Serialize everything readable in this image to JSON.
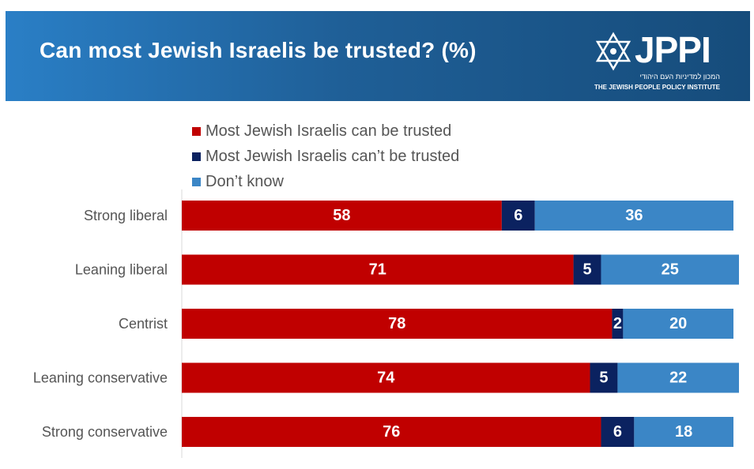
{
  "header": {
    "title": "Can most Jewish Israelis be trusted? (%)",
    "logo_text": "JPPI",
    "logo_hebrew": "המכון למדיניות העם היהודי",
    "logo_subtitle": "THE JEWISH PEOPLE POLICY INSTITUTE"
  },
  "colors": {
    "trusted": "#c00000",
    "not_trusted": "#0b2260",
    "dont_know": "#3b86c6"
  },
  "legend": {
    "trusted": "Most Jewish Israelis can be trusted",
    "not_trusted": "Most Jewish Israelis can’t be trusted",
    "dont_know": "Don’t know"
  },
  "chart_data": {
    "type": "bar",
    "orientation": "horizontal",
    "stacked": true,
    "categories": [
      "Strong liberal",
      "Leaning liberal",
      "Centrist",
      "Leaning conservative",
      "Strong conservative"
    ],
    "series": [
      {
        "name": "Most Jewish Israelis can be trusted",
        "values": [
          58,
          71,
          78,
          74,
          76
        ]
      },
      {
        "name": "Most Jewish Israelis can’t be trusted",
        "values": [
          6,
          5,
          2,
          5,
          6
        ]
      },
      {
        "name": "Don’t know",
        "values": [
          36,
          25,
          20,
          22,
          18
        ]
      }
    ],
    "xlim": [
      0,
      100
    ],
    "grid": false,
    "legend_position": "top"
  }
}
